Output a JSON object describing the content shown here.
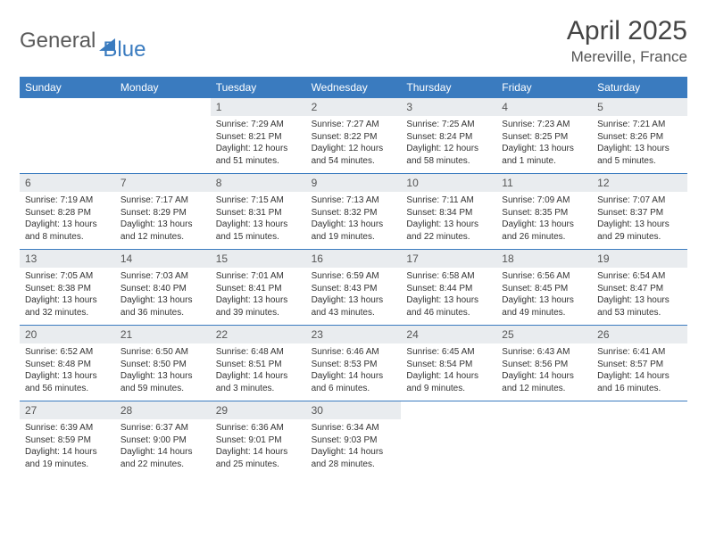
{
  "brand": {
    "part1": "General",
    "part2": "Blue"
  },
  "title": "April 2025",
  "location": "Mereville, France",
  "colors": {
    "header_bg": "#3a7bbf",
    "daynum_bg": "#e9ecef",
    "text": "#333333",
    "rule": "#3a7bbf"
  },
  "typography": {
    "title_fontsize": 30,
    "location_fontsize": 17,
    "weekday_fontsize": 12,
    "cell_fontsize": 10
  },
  "weekdays": [
    "Sunday",
    "Monday",
    "Tuesday",
    "Wednesday",
    "Thursday",
    "Friday",
    "Saturday"
  ],
  "weeks": [
    [
      null,
      null,
      {
        "d": "1",
        "sunrise": "7:29 AM",
        "sunset": "8:21 PM",
        "daylight": "12 hours and 51 minutes."
      },
      {
        "d": "2",
        "sunrise": "7:27 AM",
        "sunset": "8:22 PM",
        "daylight": "12 hours and 54 minutes."
      },
      {
        "d": "3",
        "sunrise": "7:25 AM",
        "sunset": "8:24 PM",
        "daylight": "12 hours and 58 minutes."
      },
      {
        "d": "4",
        "sunrise": "7:23 AM",
        "sunset": "8:25 PM",
        "daylight": "13 hours and 1 minute."
      },
      {
        "d": "5",
        "sunrise": "7:21 AM",
        "sunset": "8:26 PM",
        "daylight": "13 hours and 5 minutes."
      }
    ],
    [
      {
        "d": "6",
        "sunrise": "7:19 AM",
        "sunset": "8:28 PM",
        "daylight": "13 hours and 8 minutes."
      },
      {
        "d": "7",
        "sunrise": "7:17 AM",
        "sunset": "8:29 PM",
        "daylight": "13 hours and 12 minutes."
      },
      {
        "d": "8",
        "sunrise": "7:15 AM",
        "sunset": "8:31 PM",
        "daylight": "13 hours and 15 minutes."
      },
      {
        "d": "9",
        "sunrise": "7:13 AM",
        "sunset": "8:32 PM",
        "daylight": "13 hours and 19 minutes."
      },
      {
        "d": "10",
        "sunrise": "7:11 AM",
        "sunset": "8:34 PM",
        "daylight": "13 hours and 22 minutes."
      },
      {
        "d": "11",
        "sunrise": "7:09 AM",
        "sunset": "8:35 PM",
        "daylight": "13 hours and 26 minutes."
      },
      {
        "d": "12",
        "sunrise": "7:07 AM",
        "sunset": "8:37 PM",
        "daylight": "13 hours and 29 minutes."
      }
    ],
    [
      {
        "d": "13",
        "sunrise": "7:05 AM",
        "sunset": "8:38 PM",
        "daylight": "13 hours and 32 minutes."
      },
      {
        "d": "14",
        "sunrise": "7:03 AM",
        "sunset": "8:40 PM",
        "daylight": "13 hours and 36 minutes."
      },
      {
        "d": "15",
        "sunrise": "7:01 AM",
        "sunset": "8:41 PM",
        "daylight": "13 hours and 39 minutes."
      },
      {
        "d": "16",
        "sunrise": "6:59 AM",
        "sunset": "8:43 PM",
        "daylight": "13 hours and 43 minutes."
      },
      {
        "d": "17",
        "sunrise": "6:58 AM",
        "sunset": "8:44 PM",
        "daylight": "13 hours and 46 minutes."
      },
      {
        "d": "18",
        "sunrise": "6:56 AM",
        "sunset": "8:45 PM",
        "daylight": "13 hours and 49 minutes."
      },
      {
        "d": "19",
        "sunrise": "6:54 AM",
        "sunset": "8:47 PM",
        "daylight": "13 hours and 53 minutes."
      }
    ],
    [
      {
        "d": "20",
        "sunrise": "6:52 AM",
        "sunset": "8:48 PM",
        "daylight": "13 hours and 56 minutes."
      },
      {
        "d": "21",
        "sunrise": "6:50 AM",
        "sunset": "8:50 PM",
        "daylight": "13 hours and 59 minutes."
      },
      {
        "d": "22",
        "sunrise": "6:48 AM",
        "sunset": "8:51 PM",
        "daylight": "14 hours and 3 minutes."
      },
      {
        "d": "23",
        "sunrise": "6:46 AM",
        "sunset": "8:53 PM",
        "daylight": "14 hours and 6 minutes."
      },
      {
        "d": "24",
        "sunrise": "6:45 AM",
        "sunset": "8:54 PM",
        "daylight": "14 hours and 9 minutes."
      },
      {
        "d": "25",
        "sunrise": "6:43 AM",
        "sunset": "8:56 PM",
        "daylight": "14 hours and 12 minutes."
      },
      {
        "d": "26",
        "sunrise": "6:41 AM",
        "sunset": "8:57 PM",
        "daylight": "14 hours and 16 minutes."
      }
    ],
    [
      {
        "d": "27",
        "sunrise": "6:39 AM",
        "sunset": "8:59 PM",
        "daylight": "14 hours and 19 minutes."
      },
      {
        "d": "28",
        "sunrise": "6:37 AM",
        "sunset": "9:00 PM",
        "daylight": "14 hours and 22 minutes."
      },
      {
        "d": "29",
        "sunrise": "6:36 AM",
        "sunset": "9:01 PM",
        "daylight": "14 hours and 25 minutes."
      },
      {
        "d": "30",
        "sunrise": "6:34 AM",
        "sunset": "9:03 PM",
        "daylight": "14 hours and 28 minutes."
      },
      null,
      null,
      null
    ]
  ],
  "labels": {
    "sunrise": "Sunrise:",
    "sunset": "Sunset:",
    "daylight": "Daylight:"
  }
}
